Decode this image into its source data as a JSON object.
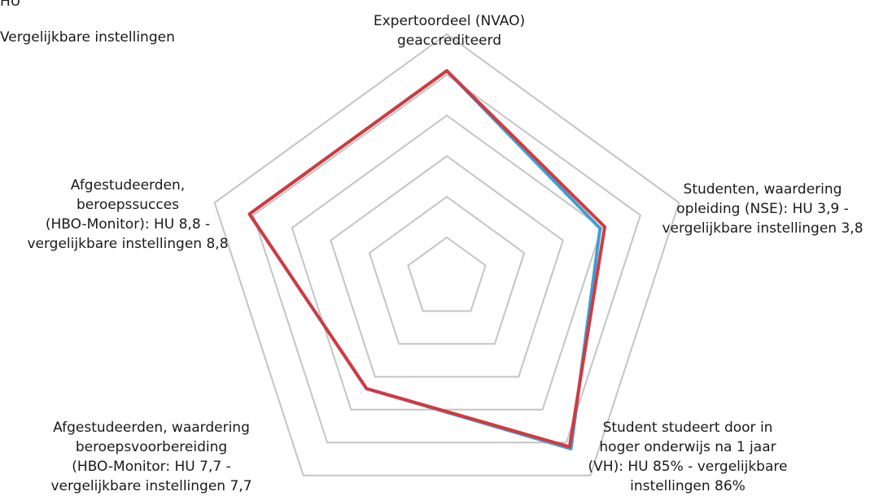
{
  "chart_data": {
    "type": "radar",
    "title": "",
    "legend": {
      "placement": "top-left",
      "entries": [
        "HU",
        "Vergelijkbare instellingen"
      ]
    },
    "axes": [
      {
        "label_lines": [
          "Expertoordeel (NVAO)",
          "geaccrediteerd"
        ]
      },
      {
        "label_lines": [
          "Studenten, waardering",
          "opleiding (NSE): HU 3,9 -",
          "vergelijkbare instellingen 3,8"
        ]
      },
      {
        "label_lines": [
          "Student studeert door in",
          "hoger onderwijs na 1 jaar",
          "(VH): HU 85% - vergelijkbare",
          "instellingen 86%"
        ]
      },
      {
        "label_lines": [
          "Afgestudeerden, waardering",
          "beroepsvoorbereiding",
          "(HBO-Monitor: HU 7,7 -",
          "vergelijkbare instellingen 7,7"
        ]
      },
      {
        "label_lines": [
          "Afgestudeerden,",
          "beroepssucces",
          "(HBO-Monitor): HU 8,8 -",
          "vergelijkbare instellingen 8,8"
        ]
      }
    ],
    "rings": 6,
    "scale": [
      0,
      1
    ],
    "series": [
      {
        "name": "Vergelijkbare instellingen",
        "color": "#3aa0d6",
        "values": [
          0.85,
          0.66,
          0.865,
          0.56,
          0.85
        ]
      },
      {
        "name": "HU",
        "color": "#d13a3f",
        "values": [
          0.85,
          0.68,
          0.855,
          0.56,
          0.85
        ]
      }
    ],
    "grid_color": "#c4c4c4"
  }
}
